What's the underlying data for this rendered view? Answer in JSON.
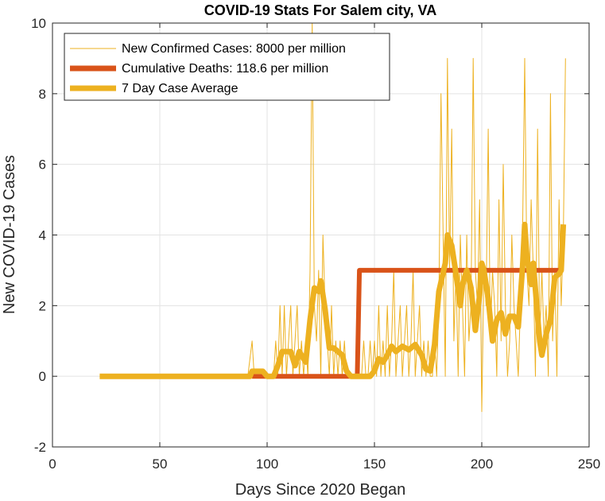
{
  "chart_data": {
    "type": "line",
    "title": "COVID-19 Stats For Salem city, VA",
    "xlabel": "Days Since 2020 Began",
    "ylabel": "New COVID-19 Cases",
    "xlim": [
      0,
      250
    ],
    "ylim": [
      -2,
      10
    ],
    "xticks": [
      0,
      50,
      100,
      150,
      200,
      250
    ],
    "yticks": [
      -2,
      0,
      2,
      4,
      6,
      8,
      10
    ],
    "grid": true,
    "legend_position": "top-left",
    "colors": {
      "new_cases": "#EDB120",
      "deaths": "#D95319",
      "average": "#EDB120"
    },
    "series": [
      {
        "name": "New Confirmed Cases: 8000 per million",
        "style": "thin",
        "points": [
          [
            22,
            0
          ],
          [
            91,
            0
          ],
          [
            93,
            1
          ],
          [
            94,
            0
          ],
          [
            103,
            0
          ],
          [
            104,
            1
          ],
          [
            105,
            0
          ],
          [
            106,
            2
          ],
          [
            107,
            0
          ],
          [
            108,
            2
          ],
          [
            109,
            0
          ],
          [
            110,
            1
          ],
          [
            111,
            2
          ],
          [
            112,
            0
          ],
          [
            113,
            1
          ],
          [
            114,
            2
          ],
          [
            115,
            0
          ],
          [
            116,
            1
          ],
          [
            117,
            0
          ],
          [
            118,
            1
          ],
          [
            119,
            0
          ],
          [
            120,
            3
          ],
          [
            121,
            10
          ],
          [
            122,
            2
          ],
          [
            123,
            1
          ],
          [
            124,
            3
          ],
          [
            125,
            0
          ],
          [
            126,
            4
          ],
          [
            127,
            2
          ],
          [
            128,
            1
          ],
          [
            129,
            0
          ],
          [
            130,
            2
          ],
          [
            131,
            0
          ],
          [
            132,
            1
          ],
          [
            133,
            0
          ],
          [
            134,
            1
          ],
          [
            135,
            0
          ],
          [
            136,
            1
          ],
          [
            137,
            0
          ],
          [
            138,
            0
          ],
          [
            139,
            0
          ],
          [
            140,
            0
          ],
          [
            141,
            0
          ],
          [
            142,
            0
          ],
          [
            143,
            0
          ],
          [
            144,
            0
          ],
          [
            145,
            1
          ],
          [
            146,
            0
          ],
          [
            147,
            0
          ],
          [
            148,
            1
          ],
          [
            149,
            0
          ],
          [
            150,
            1
          ],
          [
            151,
            0
          ],
          [
            152,
            2
          ],
          [
            153,
            0
          ],
          [
            154,
            1
          ],
          [
            155,
            0
          ],
          [
            156,
            2
          ],
          [
            157,
            0
          ],
          [
            158,
            1
          ],
          [
            159,
            3
          ],
          [
            160,
            0
          ],
          [
            161,
            1
          ],
          [
            162,
            2
          ],
          [
            163,
            0
          ],
          [
            164,
            1
          ],
          [
            165,
            2
          ],
          [
            166,
            0
          ],
          [
            167,
            1
          ],
          [
            168,
            3
          ],
          [
            169,
            0
          ],
          [
            170,
            1
          ],
          [
            171,
            2
          ],
          [
            172,
            0
          ],
          [
            173,
            1
          ],
          [
            174,
            0
          ],
          [
            175,
            1
          ],
          [
            176,
            0
          ],
          [
            177,
            0
          ],
          [
            178,
            1
          ],
          [
            179,
            0
          ],
          [
            180,
            2
          ],
          [
            181,
            8
          ],
          [
            182,
            4
          ],
          [
            183,
            0
          ],
          [
            184,
            9
          ],
          [
            185,
            3
          ],
          [
            186,
            7
          ],
          [
            187,
            1
          ],
          [
            188,
            3
          ],
          [
            189,
            0
          ],
          [
            190,
            4
          ],
          [
            191,
            2
          ],
          [
            192,
            0
          ],
          [
            193,
            4
          ],
          [
            194,
            1
          ],
          [
            195,
            2
          ],
          [
            196,
            9
          ],
          [
            197,
            3
          ],
          [
            198,
            2
          ],
          [
            199,
            5
          ],
          [
            200,
            -1
          ],
          [
            201,
            3
          ],
          [
            202,
            2
          ],
          [
            203,
            7
          ],
          [
            204,
            1
          ],
          [
            205,
            3
          ],
          [
            206,
            2
          ],
          [
            207,
            0
          ],
          [
            208,
            5
          ],
          [
            209,
            1
          ],
          [
            210,
            6
          ],
          [
            211,
            2
          ],
          [
            212,
            0
          ],
          [
            213,
            1
          ],
          [
            214,
            4
          ],
          [
            215,
            2
          ],
          [
            216,
            1
          ],
          [
            217,
            0
          ],
          [
            218,
            2
          ],
          [
            219,
            4
          ],
          [
            220,
            9
          ],
          [
            221,
            3
          ],
          [
            222,
            2
          ],
          [
            223,
            5
          ],
          [
            224,
            3
          ],
          [
            225,
            0
          ],
          [
            226,
            7
          ],
          [
            227,
            1
          ],
          [
            228,
            3
          ],
          [
            229,
            1
          ],
          [
            230,
            2
          ],
          [
            231,
            0
          ],
          [
            232,
            8
          ],
          [
            233,
            1
          ],
          [
            234,
            3
          ],
          [
            235,
            0
          ],
          [
            236,
            5
          ],
          [
            237,
            2
          ],
          [
            238,
            4
          ],
          [
            239,
            9
          ]
        ]
      },
      {
        "name": "Cumulative Deaths: 118.6 per million",
        "style": "thick",
        "points": [
          [
            93,
            0
          ],
          [
            142,
            0
          ],
          [
            143,
            3
          ],
          [
            236,
            3
          ]
        ]
      },
      {
        "name": "7 Day Case Average",
        "style": "thick",
        "points": [
          [
            22,
            0
          ],
          [
            92,
            0
          ],
          [
            93,
            0.14
          ],
          [
            98,
            0.14
          ],
          [
            100,
            0
          ],
          [
            103,
            0
          ],
          [
            105,
            0.3
          ],
          [
            107,
            0.7
          ],
          [
            111,
            0.7
          ],
          [
            113,
            0.3
          ],
          [
            115,
            0.7
          ],
          [
            118,
            0.4
          ],
          [
            120,
            1.6
          ],
          [
            122,
            2.5
          ],
          [
            124,
            2.4
          ],
          [
            125,
            2.7
          ],
          [
            127,
            1.9
          ],
          [
            129,
            0.8
          ],
          [
            131,
            0.8
          ],
          [
            135,
            0.6
          ],
          [
            137,
            0.15
          ],
          [
            139,
            0
          ],
          [
            148,
            0
          ],
          [
            150,
            0.15
          ],
          [
            152,
            0.5
          ],
          [
            154,
            0.4
          ],
          [
            156,
            0.6
          ],
          [
            158,
            0.85
          ],
          [
            160,
            0.7
          ],
          [
            163,
            0.85
          ],
          [
            166,
            0.75
          ],
          [
            169,
            0.9
          ],
          [
            172,
            0.6
          ],
          [
            174,
            0.2
          ],
          [
            176,
            0.15
          ],
          [
            178,
            0.9
          ],
          [
            180,
            2.4
          ],
          [
            183,
            3.2
          ],
          [
            184,
            4.0
          ],
          [
            186,
            3.7
          ],
          [
            188,
            2.9
          ],
          [
            190,
            2.0
          ],
          [
            191,
            2.6
          ],
          [
            193,
            3.0
          ],
          [
            195,
            2.5
          ],
          [
            197,
            1.3
          ],
          [
            199,
            2.3
          ],
          [
            200,
            3.2
          ],
          [
            201,
            3.0
          ],
          [
            203,
            2.2
          ],
          [
            205,
            1.0
          ],
          [
            207,
            1.6
          ],
          [
            209,
            1.8
          ],
          [
            211,
            1.2
          ],
          [
            213,
            1.7
          ],
          [
            215,
            1.7
          ],
          [
            217,
            1.4
          ],
          [
            219,
            3.1
          ],
          [
            220,
            4.3
          ],
          [
            221,
            3.4
          ],
          [
            223,
            2.6
          ],
          [
            224,
            3.2
          ],
          [
            226,
            1.7
          ],
          [
            227,
            1.0
          ],
          [
            228,
            0.6
          ],
          [
            230,
            1.2
          ],
          [
            232,
            1.6
          ],
          [
            234,
            2.8
          ],
          [
            236,
            2.9
          ],
          [
            237,
            3.0
          ],
          [
            238,
            4.3
          ]
        ]
      }
    ]
  }
}
